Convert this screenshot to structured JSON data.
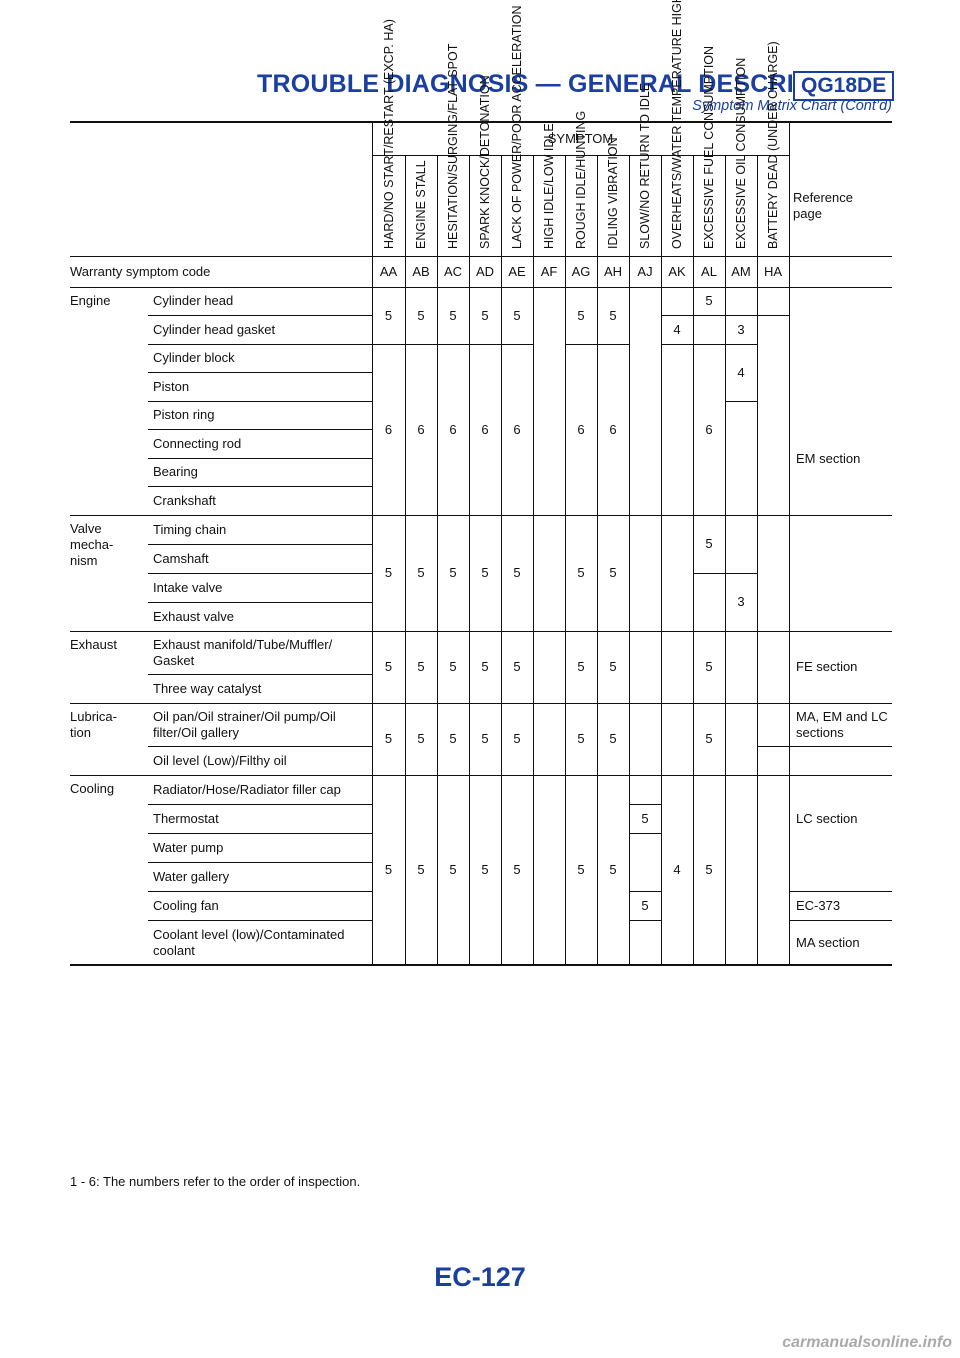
{
  "header": {
    "title": "TROUBLE DIAGNOSIS — GENERAL DESCRIPTION",
    "badge": "QG18DE",
    "subtitle": "Symptom Matrix Chart (Cont’d)"
  },
  "table": {
    "symptom_heading": "SYMPTOM",
    "reference_heading": "Reference page",
    "warranty_label": "Warranty symptom code",
    "symptoms": [
      {
        "name": "HARD/NO START/RESTART (EXCP. HA)",
        "code": "AA"
      },
      {
        "name": "ENGINE STALL",
        "code": "AB"
      },
      {
        "name": "HESITATION/SURGING/FLAT SPOT",
        "code": "AC"
      },
      {
        "name": "SPARK KNOCK/DETONATION",
        "code": "AD"
      },
      {
        "name": "LACK OF POWER/POOR ACCELERATION",
        "code": "AE"
      },
      {
        "name": "HIGH IDLE/LOW IDLE",
        "code": "AF"
      },
      {
        "name": "ROUGH IDLE/HUNTING",
        "code": "AG"
      },
      {
        "name": "IDLING VIBRATION",
        "code": "AH"
      },
      {
        "name": "SLOW/NO RETURN TO IDLE",
        "code": "AJ"
      },
      {
        "name": "OVERHEATS/WATER TEMPERATURE HIGH",
        "code": "AK"
      },
      {
        "name": "EXCESSIVE FUEL CONSUMPTION",
        "code": "AL"
      },
      {
        "name": "EXCESSIVE OIL CONSUMPTION",
        "code": "AM"
      },
      {
        "name": "BATTERY DEAD (UNDER CHARGE)",
        "code": "HA"
      }
    ],
    "groups": [
      {
        "name": "Engine",
        "items": [
          "Cylinder head",
          "Cylinder head gasket",
          "Cylinder block",
          "Piston",
          "Piston ring",
          "Connecting rod",
          "Bearing",
          "Crankshaft"
        ]
      },
      {
        "name": "Valve mecha- nism",
        "items": [
          "Timing chain",
          "Camshaft",
          "Intake valve",
          "Exhaust valve"
        ]
      },
      {
        "name": "Exhaust",
        "items": [
          "Exhaust manifold/Tube/Muffler/ Gasket",
          "Three way catalyst"
        ]
      },
      {
        "name": "Lubrica- tion",
        "items": [
          "Oil pan/Oil strainer/Oil pump/Oil filter/Oil gallery",
          "Oil level (Low)/Filthy oil"
        ]
      },
      {
        "name": "Cooling",
        "items": [
          "Radiator/Hose/Radiator filler cap",
          "Thermostat",
          "Water pump",
          "Water gallery",
          "Cooling fan",
          "Coolant level (low)/Contaminated coolant"
        ]
      }
    ],
    "cells": [
      {
        "col": 0,
        "r0": 0,
        "r1": 1,
        "v": "5"
      },
      {
        "col": 1,
        "r0": 0,
        "r1": 1,
        "v": "5"
      },
      {
        "col": 2,
        "r0": 0,
        "r1": 1,
        "v": "5"
      },
      {
        "col": 3,
        "r0": 0,
        "r1": 1,
        "v": "5"
      },
      {
        "col": 4,
        "r0": 0,
        "r1": 1,
        "v": "5"
      },
      {
        "col": 6,
        "r0": 0,
        "r1": 1,
        "v": "5"
      },
      {
        "col": 7,
        "r0": 0,
        "r1": 1,
        "v": "5"
      },
      {
        "col": 10,
        "r0": 0,
        "r1": 0,
        "v": "5"
      },
      {
        "col": 9,
        "r0": 1,
        "r1": 1,
        "v": "4"
      },
      {
        "col": 11,
        "r0": 1,
        "r1": 1,
        "v": "3"
      },
      {
        "col": 0,
        "r0": 2,
        "r1": 7,
        "v": "6"
      },
      {
        "col": 1,
        "r0": 2,
        "r1": 7,
        "v": "6"
      },
      {
        "col": 2,
        "r0": 2,
        "r1": 7,
        "v": "6"
      },
      {
        "col": 3,
        "r0": 2,
        "r1": 7,
        "v": "6"
      },
      {
        "col": 4,
        "r0": 2,
        "r1": 7,
        "v": "6"
      },
      {
        "col": 6,
        "r0": 2,
        "r1": 7,
        "v": "6"
      },
      {
        "col": 7,
        "r0": 2,
        "r1": 7,
        "v": "6"
      },
      {
        "col": 10,
        "r0": 2,
        "r1": 7,
        "v": "6"
      },
      {
        "col": 11,
        "r0": 2,
        "r1": 3,
        "v": "4"
      },
      {
        "col": 0,
        "r0": 8,
        "r1": 11,
        "v": "5"
      },
      {
        "col": 1,
        "r0": 8,
        "r1": 11,
        "v": "5"
      },
      {
        "col": 2,
        "r0": 8,
        "r1": 11,
        "v": "5"
      },
      {
        "col": 3,
        "r0": 8,
        "r1": 11,
        "v": "5"
      },
      {
        "col": 4,
        "r0": 8,
        "r1": 11,
        "v": "5"
      },
      {
        "col": 6,
        "r0": 8,
        "r1": 11,
        "v": "5"
      },
      {
        "col": 7,
        "r0": 8,
        "r1": 11,
        "v": "5"
      },
      {
        "col": 10,
        "r0": 8,
        "r1": 9,
        "v": "5"
      },
      {
        "col": 11,
        "r0": 10,
        "r1": 11,
        "v": "3"
      },
      {
        "col": 0,
        "r0": 12,
        "r1": 13,
        "v": "5"
      },
      {
        "col": 1,
        "r0": 12,
        "r1": 13,
        "v": "5"
      },
      {
        "col": 2,
        "r0": 12,
        "r1": 13,
        "v": "5"
      },
      {
        "col": 3,
        "r0": 12,
        "r1": 13,
        "v": "5"
      },
      {
        "col": 4,
        "r0": 12,
        "r1": 13,
        "v": "5"
      },
      {
        "col": 6,
        "r0": 12,
        "r1": 13,
        "v": "5"
      },
      {
        "col": 7,
        "r0": 12,
        "r1": 13,
        "v": "5"
      },
      {
        "col": 10,
        "r0": 12,
        "r1": 13,
        "v": "5"
      },
      {
        "col": 0,
        "r0": 14,
        "r1": 15,
        "v": "5"
      },
      {
        "col": 1,
        "r0": 14,
        "r1": 15,
        "v": "5"
      },
      {
        "col": 2,
        "r0": 14,
        "r1": 15,
        "v": "5"
      },
      {
        "col": 3,
        "r0": 14,
        "r1": 15,
        "v": "5"
      },
      {
        "col": 4,
        "r0": 14,
        "r1": 15,
        "v": "5"
      },
      {
        "col": 6,
        "r0": 14,
        "r1": 15,
        "v": "5"
      },
      {
        "col": 7,
        "r0": 14,
        "r1": 15,
        "v": "5"
      },
      {
        "col": 10,
        "r0": 14,
        "r1": 15,
        "v": "5"
      },
      {
        "col": 0,
        "r0": 16,
        "r1": 21,
        "v": "5"
      },
      {
        "col": 1,
        "r0": 16,
        "r1": 21,
        "v": "5"
      },
      {
        "col": 2,
        "r0": 16,
        "r1": 21,
        "v": "5"
      },
      {
        "col": 3,
        "r0": 16,
        "r1": 21,
        "v": "5"
      },
      {
        "col": 4,
        "r0": 16,
        "r1": 21,
        "v": "5"
      },
      {
        "col": 6,
        "r0": 16,
        "r1": 21,
        "v": "5"
      },
      {
        "col": 7,
        "r0": 16,
        "r1": 21,
        "v": "5"
      },
      {
        "col": 8,
        "r0": 17,
        "r1": 17,
        "v": "5"
      },
      {
        "col": 8,
        "r0": 20,
        "r1": 20,
        "v": "5"
      },
      {
        "col": 9,
        "r0": 16,
        "r1": 21,
        "v": "4"
      },
      {
        "col": 10,
        "r0": 16,
        "r1": 21,
        "v": "5"
      }
    ],
    "references": [
      {
        "r0": 0,
        "r1": 11,
        "text": "EM section",
        "split": 7
      },
      {
        "r0": 12,
        "r1": 13,
        "text": "FE section"
      },
      {
        "r0": 14,
        "r1": 14,
        "text": "MA, EM and LC sections"
      },
      {
        "r0": 15,
        "r1": 19,
        "text": "LC section"
      },
      {
        "r0": 20,
        "r1": 20,
        "text": "EC-373"
      },
      {
        "r0": 21,
        "r1": 21,
        "text": "MA section"
      }
    ]
  },
  "footer_note": "1 - 6: The numbers refer to the order of inspection.",
  "page_number": "EC-127",
  "watermark": "carmanualsonline.info"
}
